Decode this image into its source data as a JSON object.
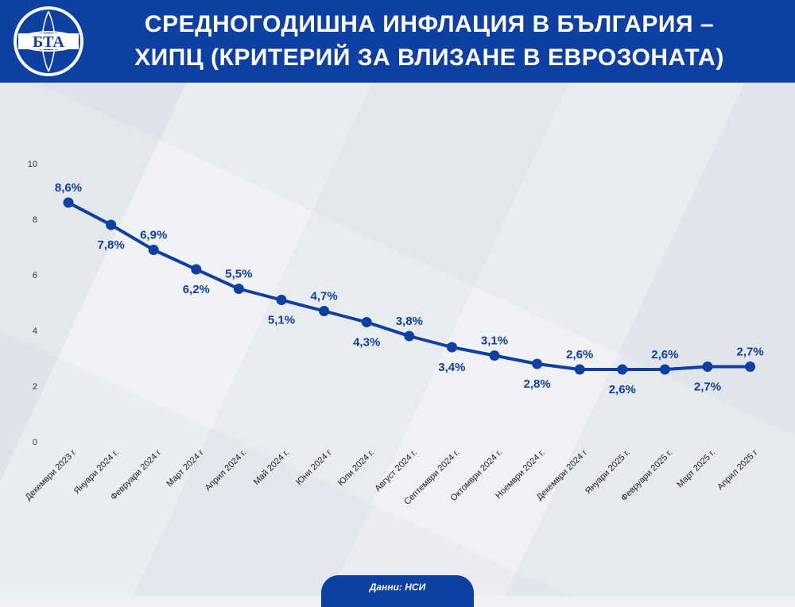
{
  "header": {
    "title_line1": "СРЕДНОГОДИШНА ИНФЛАЦИЯ В БЪЛГАРИЯ –",
    "title_line2": "ХИПЦ (КРИТЕРИЙ ЗА ВЛИЗАНЕ В ЕВРОЗОНАТА)",
    "logo_text": "БТА"
  },
  "footer": {
    "source": "Данни: НСИ"
  },
  "colors": {
    "brand_blue": "#0e3fa2",
    "line": "#0e3fa2",
    "label": "#0e3fa2"
  },
  "chart_data": {
    "type": "line",
    "title": "СРЕДНОГОДИШНА ИНФЛАЦИЯ В БЪЛГАРИЯ – ХИПЦ (КРИТЕРИЙ ЗА ВЛИЗАНЕ В ЕВРОЗОНАТА)",
    "categories": [
      "Декември 2023 г",
      "Януари 2024 г.",
      "Февруари 2024 г",
      "Март 2024 г",
      "Април 2024 г.",
      "Май 2024 г.",
      "Юни 2024 г",
      "Юли 2024 г.",
      "Август 2024 г.",
      "Септември 2024 г.",
      "Октомври 2024 г.",
      "Ноември 2024 г.",
      "Декември 2024 г",
      "Януари 2025 г.",
      "Февруари 2025 г.",
      "Март 2025 г.",
      "Април 2025 г"
    ],
    "values": [
      8.6,
      7.8,
      6.9,
      6.2,
      5.5,
      5.1,
      4.7,
      4.3,
      3.8,
      3.4,
      3.1,
      2.8,
      2.6,
      2.6,
      2.6,
      2.7,
      2.7
    ],
    "data_labels": [
      "8,6%",
      "7,8%",
      "6,9%",
      "6,2%",
      "5,5%",
      "5,1%",
      "4,7%",
      "4,3%",
      "3,8%",
      "3,4%",
      "3,1%",
      "2,8%",
      "2,6%",
      "2,6%",
      "2,6%",
      "2,7%",
      "2,7%"
    ],
    "label_position": [
      "above",
      "below",
      "above",
      "below",
      "above",
      "below",
      "above",
      "below",
      "above",
      "below",
      "above",
      "below",
      "above",
      "below",
      "above",
      "below",
      "above"
    ],
    "y_ticks": [
      "0",
      "2",
      "4",
      "6",
      "8",
      "10"
    ],
    "ylim": [
      0,
      10
    ],
    "xlabel": "",
    "ylabel": "",
    "grid": false,
    "legend": "none"
  }
}
